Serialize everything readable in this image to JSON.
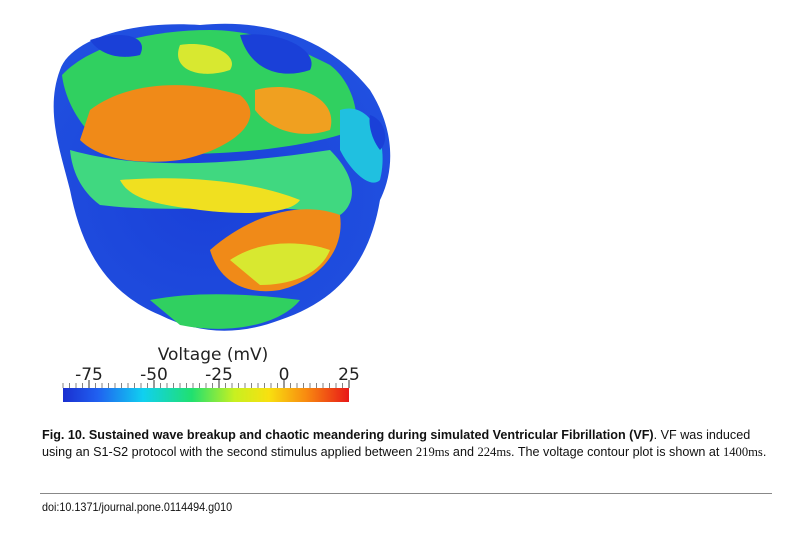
{
  "figure": {
    "colorbar": {
      "title": "Voltage (mV)",
      "lim": [
        -85,
        25
      ],
      "ticks": [
        -75,
        -50,
        -25,
        0,
        25
      ]
    }
  },
  "caption": {
    "bold": "Fig. 10. Sustained wave breakup and chaotic meandering during simulated Ventricular Fibrillation (VF)",
    "parts": [
      ". VF was induced using an S1-S2 protocol with the second stimulus applied between ",
      "219ms",
      " and ",
      "224ms",
      ". The voltage contour plot is shown at ",
      "1400ms",
      "."
    ]
  },
  "doi": "doi:10.1371/journal.pone.0114494.g010"
}
